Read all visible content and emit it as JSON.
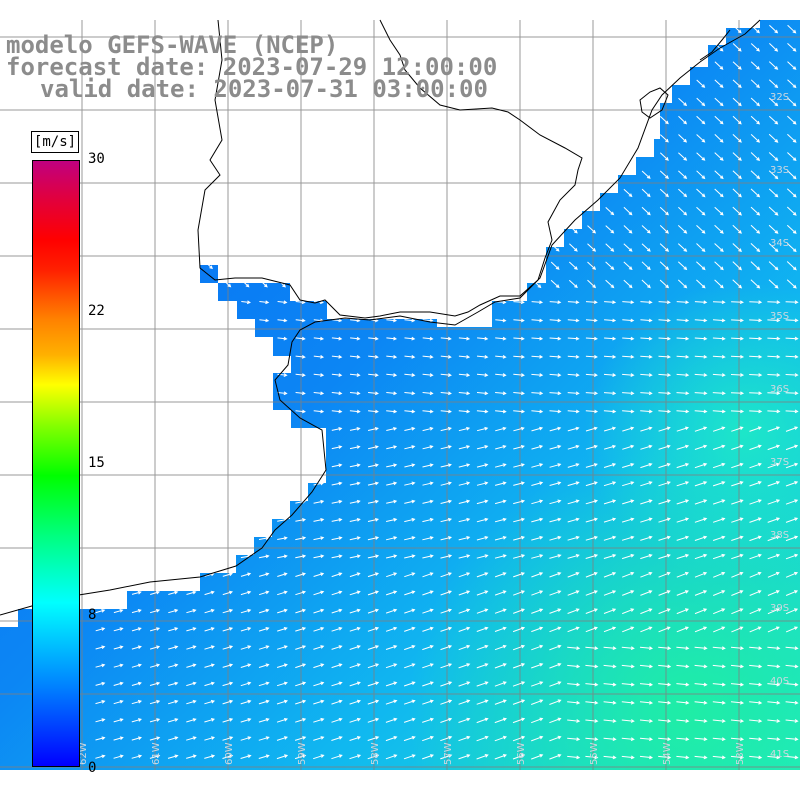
{
  "title": {
    "line1": "modelo GEFS-WAVE (NCEP)",
    "line2": "forecast date: 2023-07-29 12:00:00",
    "line3": "valid date: 2023-07-31 03:00:00"
  },
  "colorbar": {
    "unit": "[m/s]",
    "ticks": [
      "30",
      "22",
      "15",
      "8",
      "0"
    ],
    "min": 0,
    "max": 30,
    "colors": [
      "#0000ff",
      "#0080ff",
      "#00ffff",
      "#00ff80",
      "#00ff00",
      "#80ff00",
      "#ffff00",
      "#ff8000",
      "#ff0000",
      "#c00080"
    ]
  },
  "axes": {
    "lat_labels": [
      "32S",
      "33S",
      "34S",
      "35S",
      "36S",
      "37S",
      "38S",
      "39S",
      "40S",
      "41S"
    ],
    "lon_labels": [
      "62W",
      "61W",
      "60W",
      "59W",
      "58W",
      "57W",
      "56W",
      "55W",
      "54W",
      "53W"
    ]
  },
  "colors": {
    "land": "#ffffff",
    "coast": "#000000",
    "grid": "#808080",
    "ocean_low": "#0a6ef0",
    "ocean_mid": "#16a8f2",
    "ocean_high": "#22e6d2",
    "arrow": "#ffffff",
    "title": "#8c8c8c"
  }
}
